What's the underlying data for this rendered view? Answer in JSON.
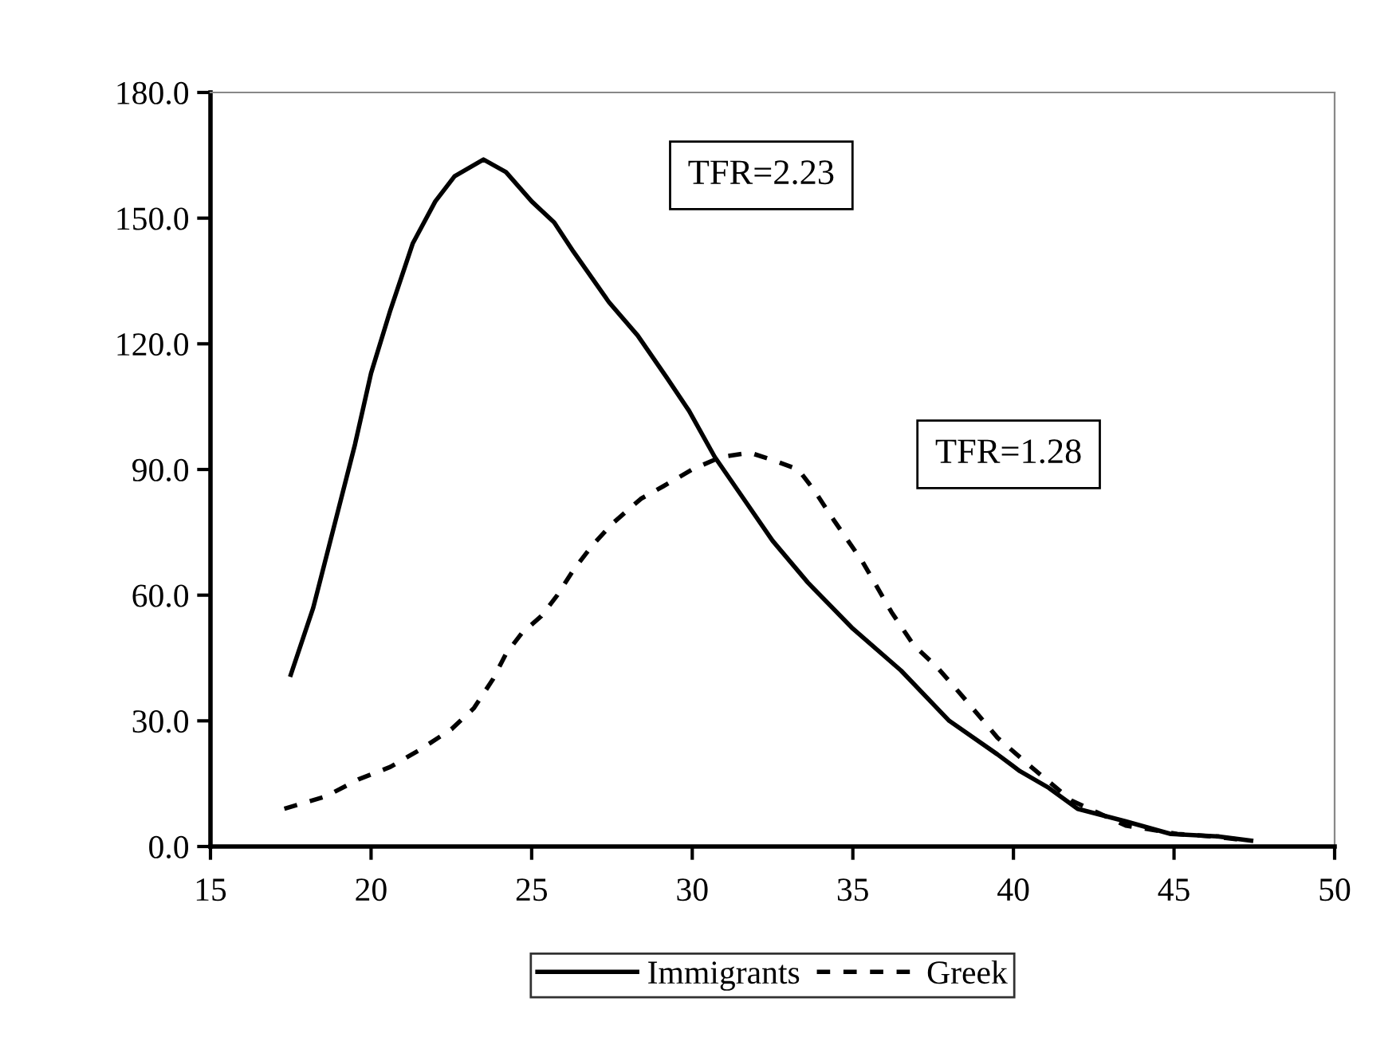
{
  "chart_data": {
    "type": "line",
    "series": [
      {
        "name": "Immigrants",
        "color": "#000000",
        "line_style": "solid",
        "x": [
          17.5,
          18.2,
          18.9,
          19.5,
          20,
          20.6,
          21.3,
          22,
          22.6,
          23.5,
          24.2,
          25,
          25.7,
          26.3,
          27.4,
          28.3,
          29.2,
          29.9,
          30.7,
          31.6,
          32.5,
          33.6,
          35,
          36.5,
          38,
          39.5,
          40.2,
          41.1,
          42,
          43.5,
          44.9,
          46.4,
          47.4
        ],
        "values": [
          41,
          57,
          78,
          96,
          113,
          128,
          144,
          154,
          160,
          164,
          161,
          154,
          149,
          142,
          130,
          122,
          112,
          104,
          93,
          83,
          73,
          63,
          52,
          42,
          30,
          22,
          18,
          14,
          9,
          6,
          3,
          2.4,
          1.4
        ]
      },
      {
        "name": "Greek",
        "color": "#000000",
        "line_style": "dashed",
        "x": [
          17.3,
          18.6,
          19.6,
          20.6,
          21.5,
          22.5,
          23.2,
          23.8,
          24.2,
          24.7,
          25.3,
          25.8,
          26.3,
          26.9,
          27.5,
          28.4,
          29.1,
          30,
          30.9,
          31.8,
          32.6,
          33.3,
          33.8,
          34.4,
          35.3,
          36.2,
          36.9,
          37.6,
          38.4,
          39.5,
          40.4,
          41.8,
          43.5,
          45.1,
          46.2,
          47.3
        ],
        "values": [
          9,
          12,
          16,
          19,
          23,
          28,
          33,
          40,
          46,
          51,
          55,
          60,
          66,
          72,
          77,
          83,
          86,
          90,
          93,
          94,
          92,
          90,
          85,
          78,
          68,
          56,
          48,
          43,
          36,
          26,
          20,
          11,
          5,
          3,
          2.4,
          1.4
        ]
      }
    ],
    "xlim": [
      15,
      50
    ],
    "xticks": [
      15,
      20,
      25,
      30,
      35,
      40,
      45,
      50
    ],
    "ylim": [
      0,
      180
    ],
    "yticks": [
      {
        "value": 0,
        "label": "0.0"
      },
      {
        "value": 30,
        "label": "30.0"
      },
      {
        "value": 60,
        "label": "60.0"
      },
      {
        "value": 90,
        "label": "90.0"
      },
      {
        "value": 120,
        "label": "120.0"
      },
      {
        "value": 150,
        "label": "150.0"
      },
      {
        "value": 180,
        "label": "180.0"
      }
    ],
    "annotations": [
      "TFR=2.23",
      "TFR=1.28"
    ],
    "grid": false,
    "legend": "bottom",
    "marker": "none"
  }
}
